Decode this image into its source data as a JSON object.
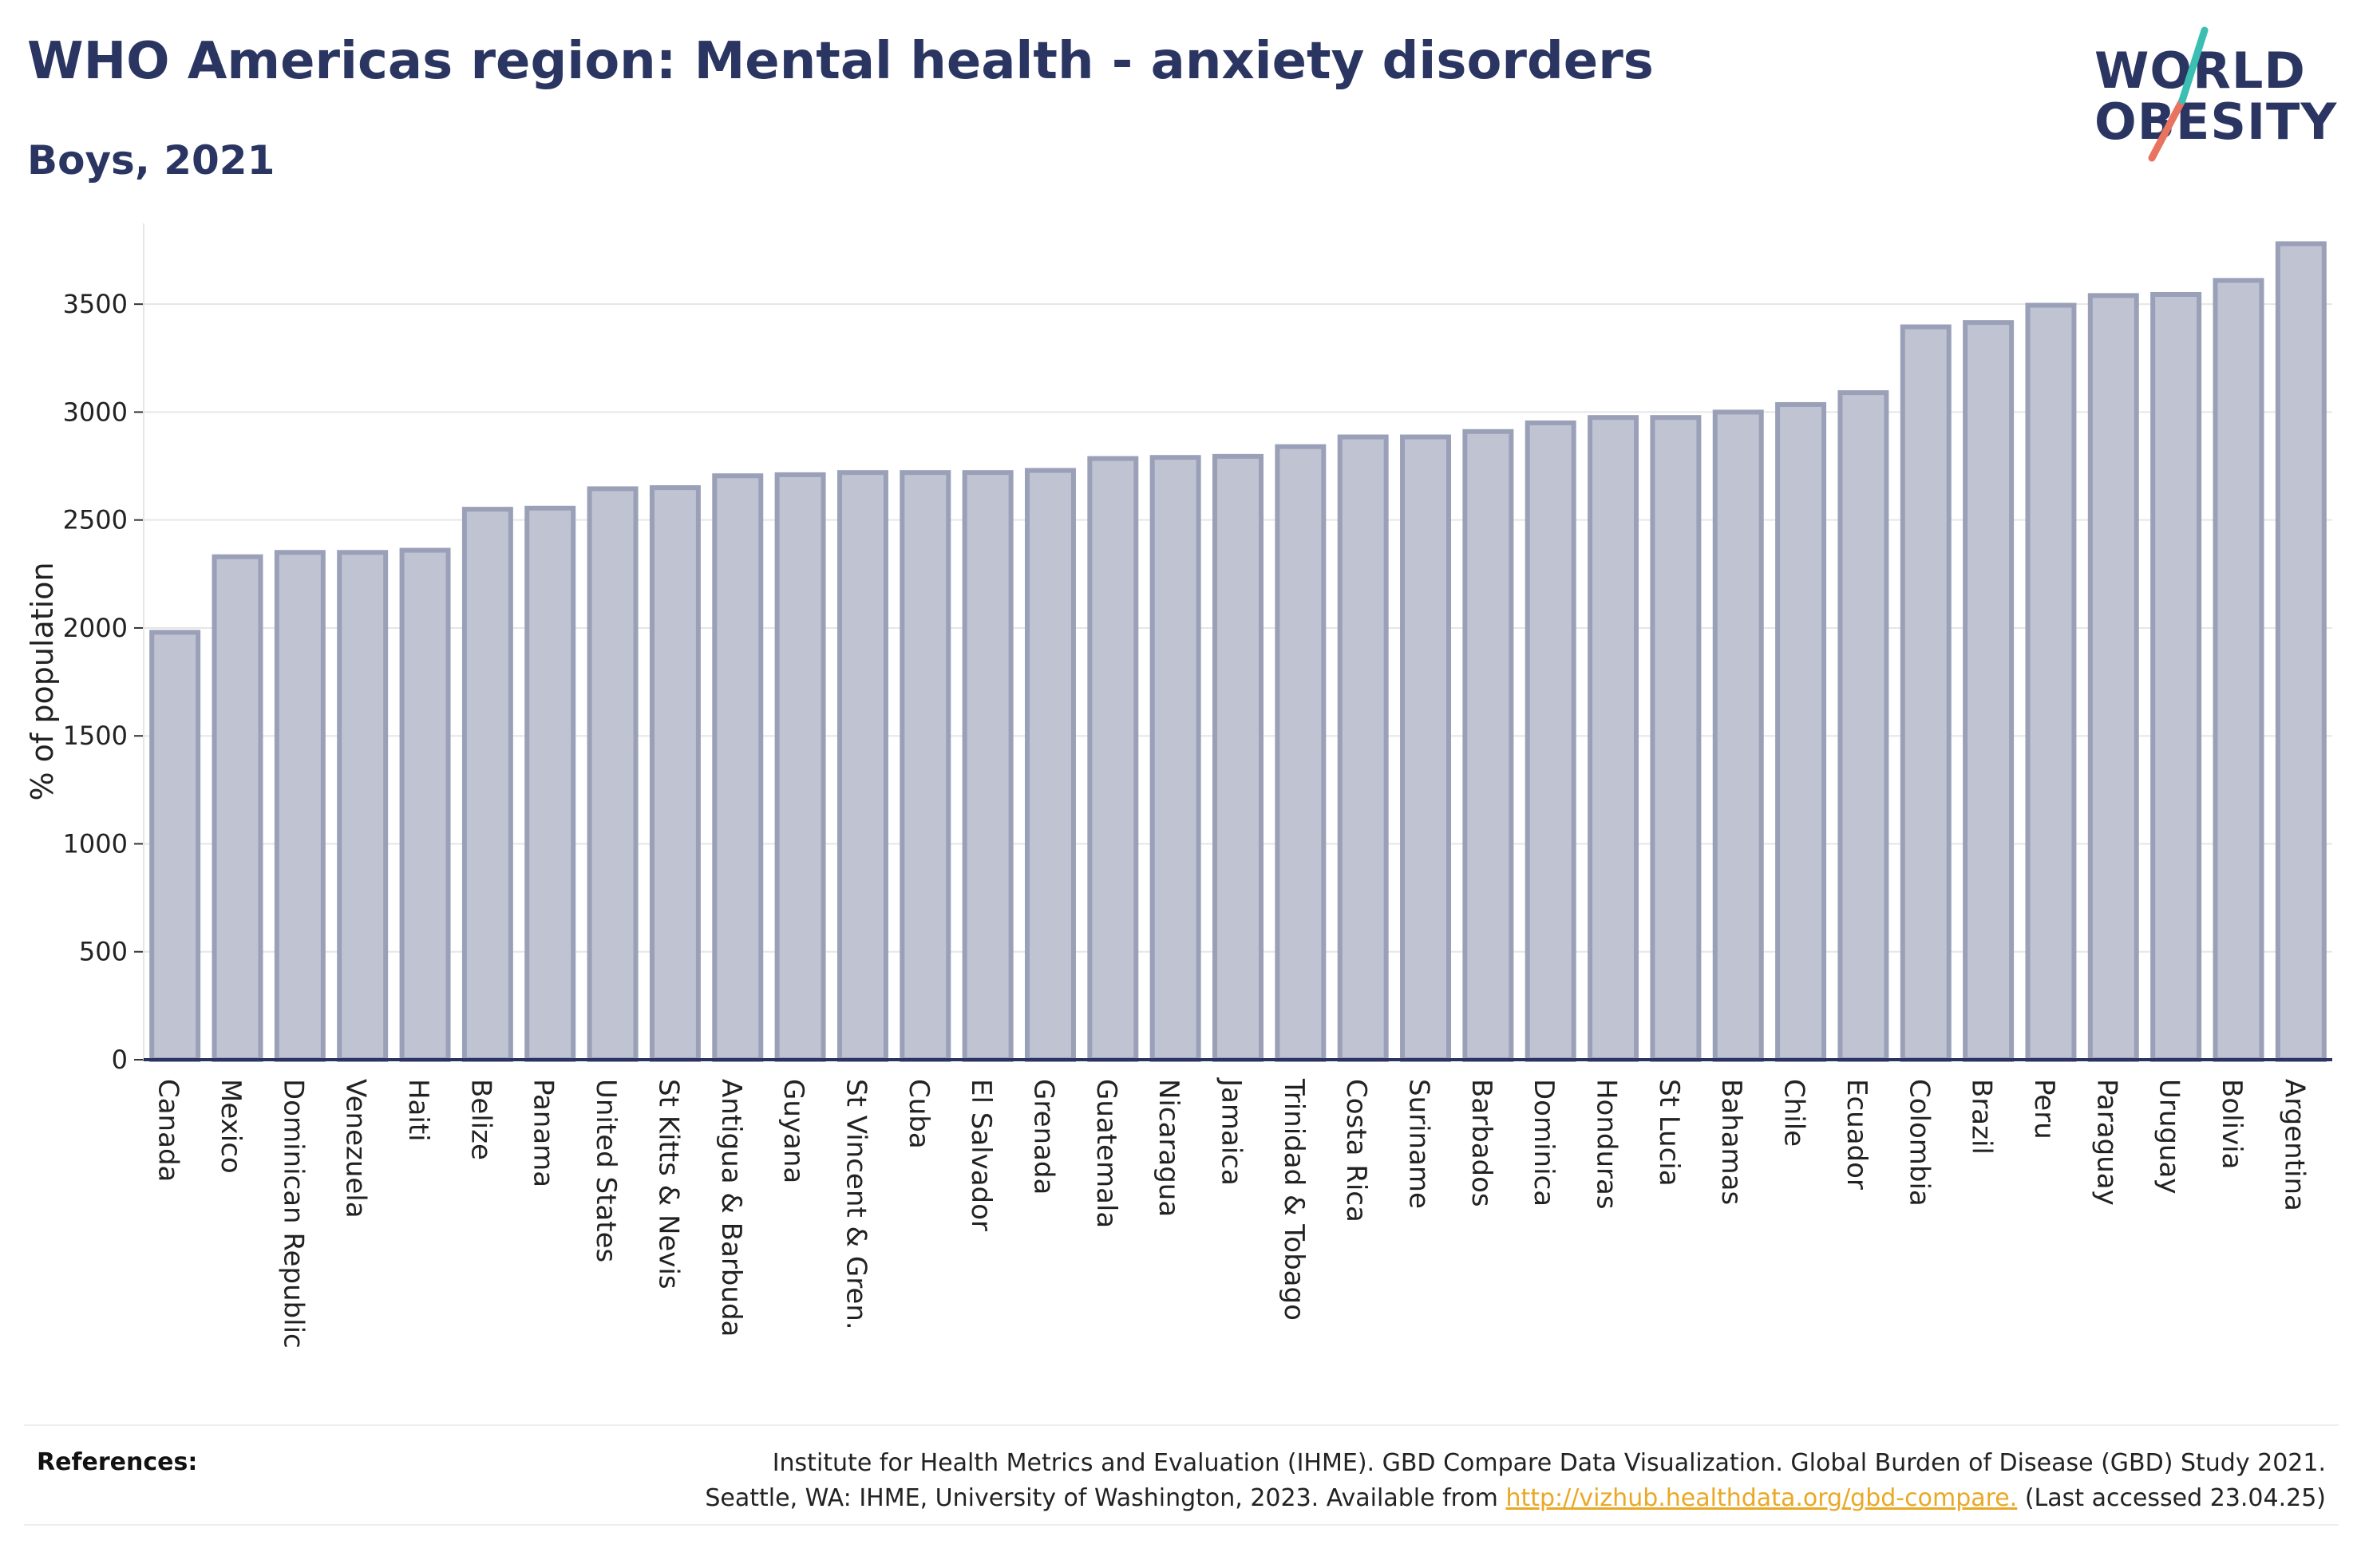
{
  "title": "WHO Americas region: Mental health - anxiety disorders",
  "subtitle": "Boys, 2021",
  "logo": {
    "line1": "WORLD",
    "line2": "OBESITY"
  },
  "colors": {
    "title": "#2b3562",
    "bar_fill": "#c0c3d1",
    "bar_stroke": "#9aa0b8",
    "axis": "#2b3562",
    "grid": "#e6e6e6",
    "logo_teal": "#3bbfb3",
    "logo_red": "#e8735f",
    "link": "#e9a825"
  },
  "chart_data": {
    "type": "bar",
    "ylabel": "% of population",
    "xlabel": "",
    "ylim": [
      0,
      3800
    ],
    "yticks": [
      0,
      500,
      1000,
      1500,
      2000,
      2500,
      3000,
      3500
    ],
    "grid": "horizontal",
    "categories": [
      "Canada",
      "Mexico",
      "Dominican Republic",
      "Venezuela",
      "Haiti",
      "Belize",
      "Panama",
      "United States",
      "St Kitts & Nevis",
      "Antigua & Barbuda",
      "Guyana",
      "St Vincent & Gren.",
      "Cuba",
      "El Salvador",
      "Grenada",
      "Guatemala",
      "Nicaragua",
      "Jamaica",
      "Trinidad & Tobago",
      "Costa Rica",
      "Suriname",
      "Barbados",
      "Dominica",
      "Honduras",
      "St Lucia",
      "Bahamas",
      "Chile",
      "Ecuador",
      "Colombia",
      "Brazil",
      "Peru",
      "Paraguay",
      "Uruguay",
      "Bolivia",
      "Argentina"
    ],
    "values": [
      1980,
      2330,
      2350,
      2350,
      2360,
      2550,
      2555,
      2645,
      2650,
      2705,
      2710,
      2720,
      2720,
      2720,
      2730,
      2785,
      2790,
      2795,
      2840,
      2885,
      2885,
      2910,
      2950,
      2975,
      2975,
      3000,
      3035,
      3090,
      3395,
      3415,
      3495,
      3540,
      3545,
      3610,
      3780
    ]
  },
  "references": {
    "label": "References:",
    "line1": "Institute for Health Metrics and Evaluation (IHME). GBD Compare Data Visualization. Global Burden of Disease (GBD) Study 2021.",
    "line2_before": "Seattle, WA: IHME, University of Washington, 2023. Available from ",
    "link": "http://vizhub.healthdata.org/gbd-compare.",
    "line2_after": " (Last accessed 23.04.25)"
  }
}
